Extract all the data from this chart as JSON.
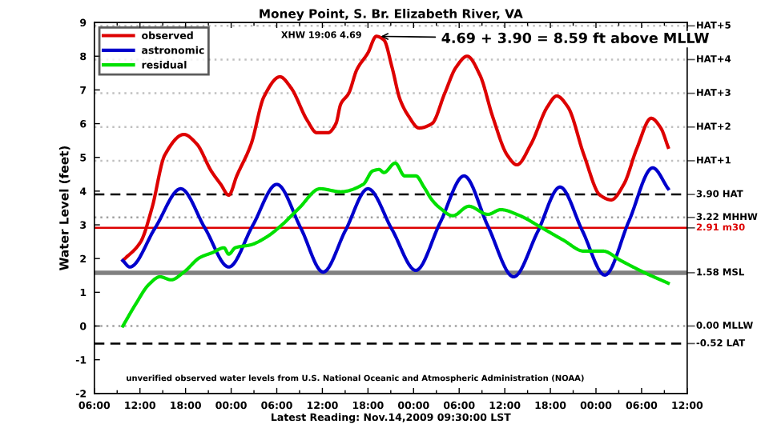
{
  "chart_data": {
    "type": "line",
    "title": "Money Point, S. Br. Elizabeth River, VA",
    "ylabel": "Water Level (feet)",
    "xlabel": "Latest Reading: Nov.14,2009 09:30:00 LST",
    "annotations": [
      "XHW 19:06 4.69",
      {
        "text": "4.69 + 3.90 = 8.59 ft above MLLW",
        "x": "2009-11-12T19:06",
        "y": 8.59
      },
      "unverified observed water levels from U.S. National Oceanic and Atmospheric Administration (NOAA)"
    ],
    "series": [
      {
        "name": "observed",
        "color": "#dd0000",
        "x": [
          "2009-11-11T09:45",
          "2009-11-11T12:06",
          "2009-11-11T13:35",
          "2009-11-11T15:16",
          "2009-11-11T17:47",
          "2009-11-11T19:28",
          "2009-11-11T21:22",
          "2009-11-11T22:38",
          "2009-11-11T23:41",
          "2009-11-12T00:44",
          "2009-11-12T02:38",
          "2009-11-12T04:19",
          "2009-11-12T06:25",
          "2009-11-12T07:53",
          "2009-11-12T10:00",
          "2009-11-12T11:16",
          "2009-11-12T12:44",
          "2009-11-12T13:47",
          "2009-11-12T14:25",
          "2009-11-12T15:28",
          "2009-11-12T16:32",
          "2009-11-12T18:00",
          "2009-11-12T19:06",
          "2009-11-12T20:06",
          "2009-11-12T21:10",
          "2009-11-12T22:12",
          "2009-11-12T23:16",
          "2009-11-13T00:44",
          "2009-11-13T02:25",
          "2009-11-13T04:06",
          "2009-11-13T05:35",
          "2009-11-13T07:03",
          "2009-11-13T08:44",
          "2009-11-13T10:25",
          "2009-11-13T12:19",
          "2009-11-13T13:35",
          "2009-11-13T15:28",
          "2009-11-13T17:35",
          "2009-11-13T18:50",
          "2009-11-13T20:19",
          "2009-11-13T22:25",
          "2009-11-14T00:32",
          "2009-11-14T02:00",
          "2009-11-14T03:41",
          "2009-11-14T05:22",
          "2009-11-14T07:16",
          "2009-11-14T08:32",
          "2009-11-14T09:30"
        ],
        "values": [
          1.94,
          2.5,
          3.5,
          5.07,
          5.68,
          5.4,
          4.6,
          4.2,
          3.88,
          4.45,
          5.4,
          6.8,
          7.39,
          7.06,
          6.1,
          5.73,
          5.73,
          6.0,
          6.58,
          6.9,
          7.6,
          8.1,
          8.59,
          8.48,
          7.67,
          6.73,
          6.25,
          5.87,
          6.0,
          6.9,
          7.67,
          8.0,
          7.44,
          6.2,
          5.07,
          4.78,
          5.4,
          6.49,
          6.82,
          6.49,
          5.07,
          3.88,
          3.74,
          4.21,
          5.26,
          6.16,
          5.87,
          5.3
        ]
      },
      {
        "name": "astronomic",
        "color": "#0000cc",
        "x": [
          "2009-11-11T09:45",
          "2009-11-11T10:40",
          "2009-11-11T14:00",
          "2009-11-11T17:22",
          "2009-11-11T20:32",
          "2009-11-11T23:41",
          "2009-11-12T02:50",
          "2009-11-12T06:00",
          "2009-11-12T09:10",
          "2009-11-12T12:06",
          "2009-11-12T15:03",
          "2009-11-12T18:00",
          "2009-11-12T21:10",
          "2009-11-13T00:18",
          "2009-11-13T03:28",
          "2009-11-13T06:38",
          "2009-11-13T09:47",
          "2009-11-13T13:10",
          "2009-11-13T16:19",
          "2009-11-13T19:16",
          "2009-11-13T22:13",
          "2009-11-14T01:10",
          "2009-11-14T04:19",
          "2009-11-14T07:28",
          "2009-11-14T09:30"
        ],
        "values": [
          1.94,
          1.75,
          2.91,
          4.07,
          2.91,
          1.75,
          2.98,
          4.2,
          2.9,
          1.6,
          2.84,
          4.07,
          2.86,
          1.65,
          3.05,
          4.45,
          2.96,
          1.46,
          2.79,
          4.12,
          2.82,
          1.51,
          3.1,
          4.69,
          4.07
        ]
      },
      {
        "name": "residual",
        "color": "#00e000",
        "x": [
          "2009-11-11T09:45",
          "2009-11-11T11:28",
          "2009-11-11T13:10",
          "2009-11-11T14:38",
          "2009-11-11T16:06",
          "2009-11-11T17:47",
          "2009-11-11T19:53",
          "2009-11-11T21:35",
          "2009-11-11T23:03",
          "2009-11-11T23:41",
          "2009-11-12T00:32",
          "2009-11-12T02:38",
          "2009-11-12T04:44",
          "2009-11-12T06:50",
          "2009-11-12T08:57",
          "2009-11-12T11:41",
          "2009-11-12T14:25",
          "2009-11-12T17:22",
          "2009-11-12T18:38",
          "2009-11-12T19:28",
          "2009-11-12T20:06",
          "2009-11-12T21:35",
          "2009-11-12T22:50",
          "2009-11-13T00:18",
          "2009-11-13T01:22",
          "2009-11-13T02:25",
          "2009-11-13T03:28",
          "2009-11-13T05:10",
          "2009-11-13T07:16",
          "2009-11-13T09:47",
          "2009-11-13T11:28",
          "2009-11-13T14:00",
          "2009-11-13T16:44",
          "2009-11-13T19:41",
          "2009-11-13T22:25",
          "2009-11-14T00:57",
          "2009-11-14T03:16",
          "2009-11-14T06:13",
          "2009-11-14T09:30"
        ],
        "values": [
          0.0,
          0.66,
          1.23,
          1.46,
          1.37,
          1.6,
          2.03,
          2.18,
          2.32,
          2.13,
          2.32,
          2.41,
          2.65,
          3.03,
          3.5,
          4.07,
          3.98,
          4.2,
          4.6,
          4.64,
          4.55,
          4.83,
          4.45,
          4.45,
          4.12,
          3.74,
          3.5,
          3.27,
          3.55,
          3.31,
          3.45,
          3.27,
          2.93,
          2.55,
          2.22,
          2.22,
          1.94,
          1.6,
          1.27
        ]
      }
    ],
    "xlim": [
      "2009-11-11T06:00",
      "2009-11-14T12:00"
    ],
    "xticks": [
      {
        "value": "2009-11-11T06:00",
        "label": "06:00"
      },
      {
        "value": "2009-11-11T12:00",
        "label": "12:00"
      },
      {
        "value": "2009-11-11T18:00",
        "label": "18:00"
      },
      {
        "value": "2009-11-12T00:00",
        "label": "00:00"
      },
      {
        "value": "2009-11-12T06:00",
        "label": "06:00"
      },
      {
        "value": "2009-11-12T12:00",
        "label": "12:00"
      },
      {
        "value": "2009-11-12T18:00",
        "label": "18:00"
      },
      {
        "value": "2009-11-13T00:00",
        "label": "00:00"
      },
      {
        "value": "2009-11-13T06:00",
        "label": "06:00"
      },
      {
        "value": "2009-11-13T12:00",
        "label": "12:00"
      },
      {
        "value": "2009-11-13T18:00",
        "label": "18:00"
      },
      {
        "value": "2009-11-14T00:00",
        "label": "00:00"
      },
      {
        "value": "2009-11-14T06:00",
        "label": "06:00"
      },
      {
        "value": "2009-11-14T12:00",
        "label": "12:00"
      }
    ],
    "ylim": [
      -2,
      9
    ],
    "yticks": [
      -2,
      -1,
      0,
      1,
      2,
      3,
      4,
      5,
      6,
      7,
      8,
      9
    ],
    "ref_lines": [
      {
        "axis": "y",
        "value": 8.9,
        "label": "HAT+5",
        "color": "#c0c0c0",
        "line_style": "dotted"
      },
      {
        "axis": "y",
        "value": 7.9,
        "label": "HAT+4",
        "color": "#c0c0c0",
        "line_style": "dotted"
      },
      {
        "axis": "y",
        "value": 6.9,
        "label": "HAT+3",
        "color": "#c0c0c0",
        "line_style": "dotted"
      },
      {
        "axis": "y",
        "value": 5.9,
        "label": "HAT+2",
        "color": "#c0c0c0",
        "line_style": "dotted"
      },
      {
        "axis": "y",
        "value": 4.9,
        "label": "HAT+1",
        "color": "#c0c0c0",
        "line_style": "dotted"
      },
      {
        "axis": "y",
        "value": 3.9,
        "label": "3.90 HAT",
        "color": "#000000",
        "line_style": "dashed"
      },
      {
        "axis": "y",
        "value": 3.22,
        "label": "3.22 MHHW",
        "color": "#a0a0a0",
        "line_style": "dotted"
      },
      {
        "axis": "y",
        "value": 2.91,
        "label": "2.91 m30",
        "color": "#dd0000",
        "line_style": "solid"
      },
      {
        "axis": "y",
        "value": 1.58,
        "label": "1.58 MSL",
        "color": "#808080",
        "line_style": "solid"
      },
      {
        "axis": "y",
        "value": 0.0,
        "label": "0.00 MLLW",
        "color": "#a0a0a0",
        "line_style": "dotted"
      },
      {
        "axis": "y",
        "value": -0.52,
        "label": "-0.52 LAT",
        "color": "#000000",
        "line_style": "dashed"
      }
    ],
    "legend": "top left",
    "grid": false
  }
}
